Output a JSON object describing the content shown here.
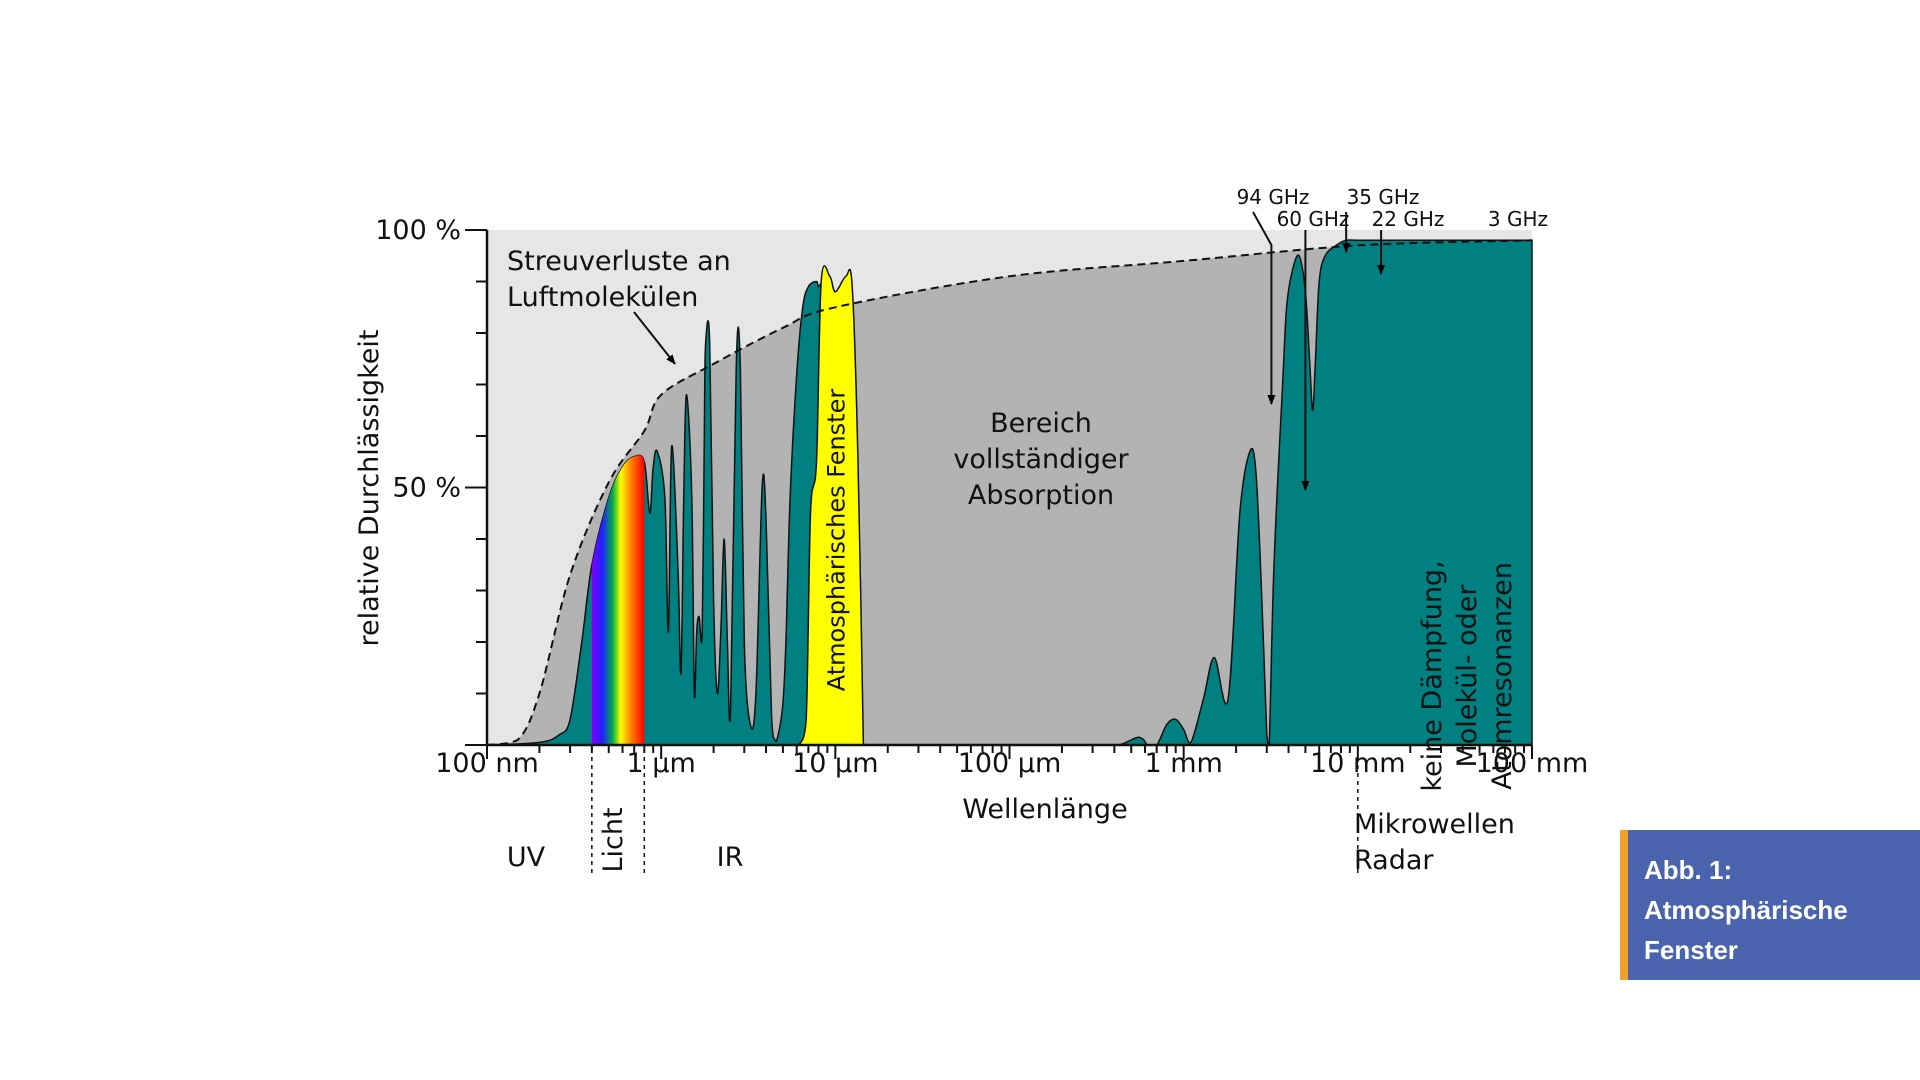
{
  "chart_data": {
    "type": "area",
    "title": "",
    "xlabel": "Wellenlänge",
    "ylabel": "relative Durchlässigkeit",
    "x_scale": "log",
    "x_unit": "m",
    "xlim": [
      1e-07,
      0.1
    ],
    "ylim": [
      0,
      100
    ],
    "xticks": [
      {
        "value": 1e-07,
        "label": "100 nm"
      },
      {
        "value": 1e-06,
        "label": "1 µm"
      },
      {
        "value": 1e-05,
        "label": "10 µm"
      },
      {
        "value": 0.0001,
        "label": "100 µm"
      },
      {
        "value": 0.001,
        "label": "1 mm"
      },
      {
        "value": 0.01,
        "label": "10 mm"
      },
      {
        "value": 0.1,
        "label": "100 mm"
      }
    ],
    "yticks": [
      {
        "value": 50,
        "label": "50 %"
      },
      {
        "value": 100,
        "label": "100 %"
      }
    ],
    "grid": false,
    "series": [
      {
        "color": "#008080",
        "x": [
          1e-07,
          2e-07,
          2.6e-07,
          3e-07,
          3.5e-07,
          4e-07,
          5e-07,
          6e-07,
          7e-07,
          8e-07,
          8.6e-07,
          9e-07,
          9.5e-07,
          1.05e-06,
          1.1e-06,
          1.15e-06,
          1.25e-06,
          1.3e-06,
          1.35e-06,
          1.4e-06,
          1.5e-06,
          1.55e-06,
          1.6e-06,
          1.65e-06,
          1.72e-06,
          1.77e-06,
          1.8e-06,
          1.9e-06,
          2e-06,
          2.1e-06,
          2.2e-06,
          2.3e-06,
          2.4e-06,
          2.5e-06,
          2.7e-06,
          2.85e-06,
          3e-06,
          3.25e-06,
          3.5e-06,
          3.8e-06,
          4e-06,
          4.3e-06,
          4.5e-06,
          4.7e-06,
          5e-06,
          5.2e-06,
          5.5e-06,
          6e-06,
          6.5e-06,
          7e-06,
          7.8e-06,
          8e-06,
          8.5e-06,
          9e-06,
          9.7e-06,
          1.05e-05,
          1.15e-05,
          1.25e-05,
          1.3e-05,
          1.35e-05,
          1.45e-05,
          1.6e-05,
          0.0003,
          0.00042,
          0.0005,
          0.00055,
          0.00059,
          0.00062,
          0.0007,
          0.0008,
          0.0009,
          0.001,
          0.0011,
          0.0013,
          0.0015,
          0.0018,
          0.0021,
          0.0024,
          0.0026,
          0.0028,
          0.003,
          0.0031,
          0.0033,
          0.0037,
          0.0039,
          0.0042,
          0.0046,
          0.005,
          0.0053,
          0.0055,
          0.0057,
          0.006,
          0.0065,
          0.0075,
          0.0085,
          0.01,
          0.0115,
          0.0125,
          0.0135,
          0.0145,
          0.0155,
          0.017,
          0.019,
          0.022,
          0.03,
          0.1
        ],
        "y": [
          0,
          0.5,
          2,
          5,
          20,
          35,
          48,
          54,
          56,
          55,
          45,
          54,
          57,
          48,
          22,
          58,
          34,
          14,
          50,
          68,
          48,
          10,
          22,
          25,
          22,
          62,
          78,
          78,
          28,
          10,
          22,
          40,
          20,
          6,
          74,
          73,
          20,
          4,
          10,
          50,
          44,
          6,
          1,
          2,
          8,
          20,
          48,
          72,
          85,
          89,
          90,
          89,
          90,
          89,
          88,
          76,
          30,
          3,
          1,
          0,
          0,
          0,
          0,
          0,
          1,
          1.5,
          1,
          0,
          0,
          4,
          5,
          3,
          0.5,
          9,
          17,
          9,
          45,
          57,
          53,
          30,
          2,
          0,
          35,
          70,
          85,
          92,
          95,
          88,
          74,
          65,
          74,
          90,
          95,
          97,
          98,
          98,
          98,
          98,
          98,
          98,
          98,
          98,
          98,
          98,
          98,
          98
        ]
      },
      {
        "color": "#ffff00",
        "x": [
          6.2e-06,
          6.8e-06,
          7.2e-06,
          7.8e-06,
          8.3e-06,
          9.3e-06,
          1e-05,
          1.15e-05,
          1.25e-05,
          1.35e-05,
          1.45e-05
        ],
        "y": [
          0,
          5,
          45,
          55,
          90,
          91,
          88,
          91,
          89,
          55,
          0
        ]
      }
    ],
    "envelope": {
      "style": "dashed",
      "x": [
        1e-07,
        1.5e-07,
        2e-07,
        3e-07,
        5e-07,
        8e-07,
        1e-06,
        2e-06,
        5e-06,
        1e-05,
        0.0001,
        0.001,
        0.01,
        0.1
      ],
      "y": [
        0,
        1,
        10,
        33,
        51,
        61,
        68,
        74,
        81,
        85,
        91,
        94,
        97,
        98
      ]
    },
    "regions": [
      {
        "label": "UV",
        "from": 1e-07,
        "to": 4e-07
      },
      {
        "label": "Licht",
        "from": 4e-07,
        "to": 8e-07
      },
      {
        "label": "IR",
        "from": 8e-07,
        "to": 0.001
      },
      {
        "label": "Mikrowellen",
        "from": 0.01,
        "to": 0.1
      },
      {
        "label": "Radar",
        "from": 0.01,
        "to": 0.1
      }
    ],
    "annotations": [
      {
        "text": "Streuverluste an",
        "target_x": 1.2e-06,
        "target_y": 74
      },
      {
        "text": "Luftmolekülen"
      },
      {
        "text": "Atmosphärisches Fenster",
        "x": 1e-05
      },
      {
        "text": "Bereich"
      },
      {
        "text": "vollständiger"
      },
      {
        "text": "Absorption"
      },
      {
        "text": "keine Dämpfung,"
      },
      {
        "text": "Molekül- oder"
      },
      {
        "text": "Atomresonanzen"
      },
      {
        "text": "94 GHz",
        "x": 0.00319
      },
      {
        "text": "60 GHz",
        "x": 0.005
      },
      {
        "text": "35 GHz",
        "x": 0.00857
      },
      {
        "text": "22 GHz",
        "x": 0.0136
      },
      {
        "text": "3 GHz",
        "x": 0.1
      }
    ]
  },
  "caption": {
    "line1": "Abb. 1:",
    "line2": "Atmosphärische",
    "line3": "Fenster"
  },
  "colors": {
    "background_light": "#e6e6e6",
    "absorption_gray": "#b3b3b3",
    "fill": "#008080",
    "window": "#ffff00",
    "caption_bg": "#4a63ad",
    "caption_accent": "#f0a12a"
  }
}
